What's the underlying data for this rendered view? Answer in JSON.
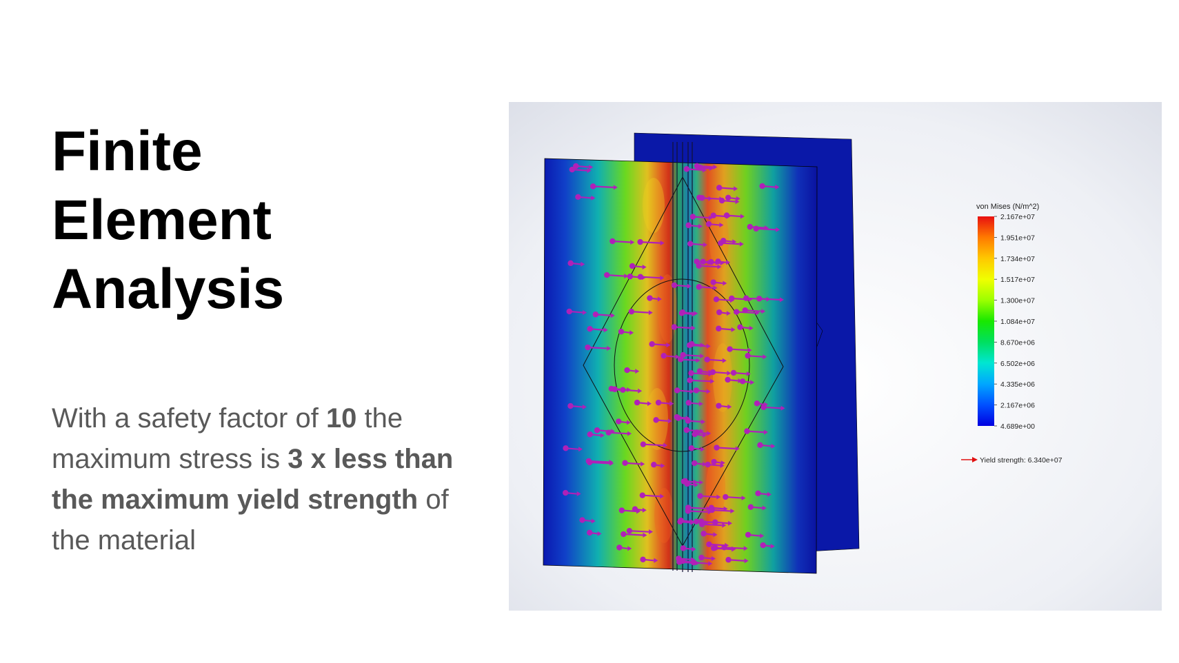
{
  "slide": {
    "title_lines": [
      "Finite",
      "Element",
      "Analysis"
    ],
    "body": {
      "t1": "With a safety factor of ",
      "b1": "10",
      "t2": " the maximum stress is ",
      "b2": "3 x less than the maximum yield strength",
      "t3": " of the material"
    }
  },
  "figure": {
    "legend": {
      "title": "von Mises (N/m^2)",
      "ticks": [
        "2.167e+07",
        "1.951e+07",
        "1.734e+07",
        "1.517e+07",
        "1.300e+07",
        "1.084e+07",
        "8.670e+06",
        "6.502e+06",
        "4.335e+06",
        "2.167e+06",
        "4.689e+00"
      ],
      "colors": [
        "#e81010",
        "#ff7a00",
        "#ffc800",
        "#f0ff00",
        "#9cff00",
        "#18e800",
        "#00e060",
        "#00e6d2",
        "#00a6ff",
        "#0050ff",
        "#0000e0"
      ],
      "yield_label": "Yield strength: 6.340e+07",
      "yield_arrow_color": "#e01010"
    },
    "colors": {
      "plate_back": "#0a1aa8",
      "stress_low": "#1020b0",
      "stress_high": "#e04020",
      "load_arrow": "#b020b8"
    }
  }
}
